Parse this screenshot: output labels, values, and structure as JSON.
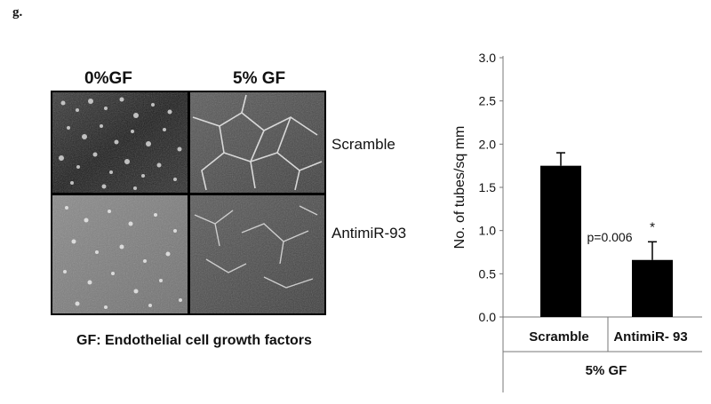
{
  "figure": {
    "panel_label": "g.",
    "micrographs": {
      "columns": [
        "0%GF",
        "5% GF"
      ],
      "rows": [
        "Scramble",
        "AntimiR-93"
      ],
      "caption": "GF: Endothelial cell growth factors"
    }
  },
  "chart_data": {
    "type": "bar",
    "categories": [
      "Scramble",
      "AntimiR- 93"
    ],
    "values": [
      1.75,
      0.66
    ],
    "errors": [
      0.15,
      0.21
    ],
    "ylabel": "No. of tubes/sq mm",
    "ylim": [
      0,
      3.0
    ],
    "yticks": [
      "0.0",
      "0.5",
      "1.0",
      "1.5",
      "2.0",
      "2.5",
      "3.0"
    ],
    "group_label": "5% GF",
    "annotation": "p=0.006",
    "significance_marker": "*",
    "bar_color": "#000000",
    "grid": false
  }
}
